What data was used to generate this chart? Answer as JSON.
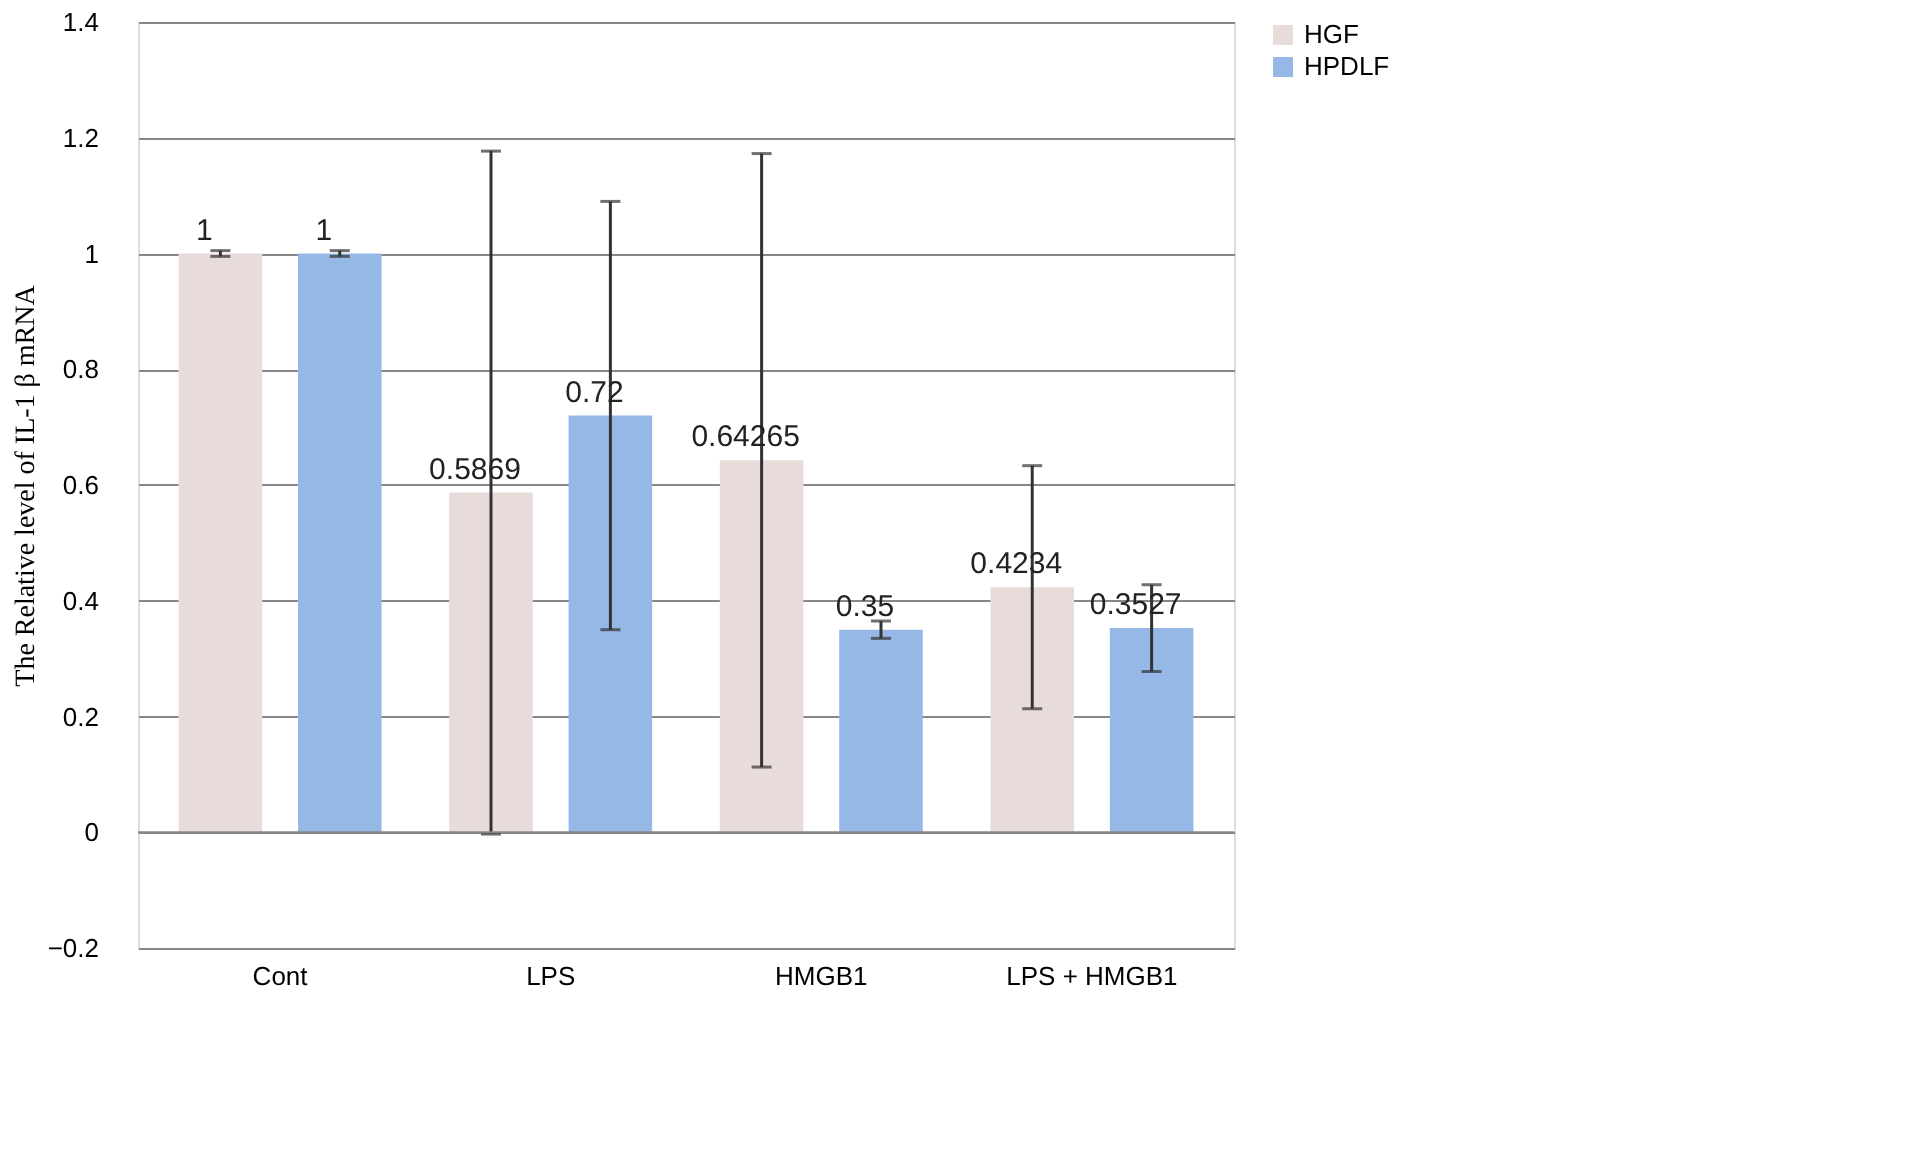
{
  "chart_data": {
    "type": "bar",
    "ylabel": "The Relative level of IL-1 β mRNA",
    "categories": [
      "Cont",
      "LPS",
      "HMGB1",
      "LPS + HMGB1"
    ],
    "series": [
      {
        "name": "HGF",
        "color": "#e8dcdb",
        "values": [
          1,
          0.5869,
          0.64265,
          0.4234
        ],
        "errors": [
          0.005,
          0.59,
          0.53,
          0.21
        ]
      },
      {
        "name": "HPDLF",
        "color": "#95b8e6",
        "values": [
          1,
          0.72,
          0.35,
          0.3527
        ],
        "errors": [
          0.005,
          0.37,
          0.015,
          0.075
        ]
      }
    ],
    "ylim": [
      -0.2,
      1.4
    ],
    "yticks": [
      -0.2,
      0,
      0.2,
      0.4,
      0.6,
      0.8,
      1,
      1.2,
      1.4
    ],
    "grid": "y",
    "legend": "right",
    "data_labels": true
  }
}
